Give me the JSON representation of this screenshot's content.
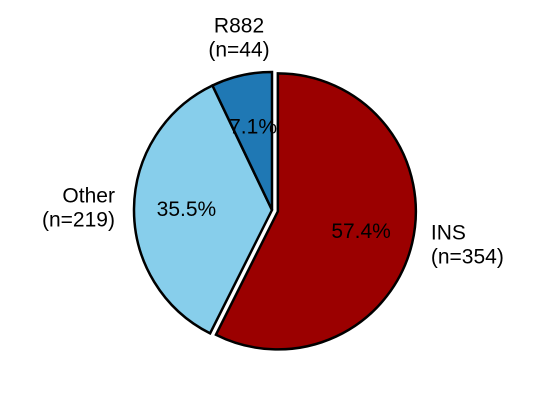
{
  "chart_data": {
    "type": "pie",
    "title": "",
    "slices": [
      {
        "name": "INS",
        "count_label": "(n=354)",
        "value": 57.4,
        "pct_label": "57.4%",
        "color": "#9b0000",
        "exploded": true
      },
      {
        "name": "Other",
        "count_label": "(n=219)",
        "value": 35.5,
        "pct_label": "35.5%",
        "color": "#87ceeb",
        "exploded": false
      },
      {
        "name": "R882",
        "count_label": "(n=44)",
        "value": 7.1,
        "pct_label": "7.1%",
        "color": "#1f78b4",
        "exploded": false
      }
    ],
    "start_angle_deg": 0,
    "direction": "clockwise",
    "legend": "none"
  }
}
